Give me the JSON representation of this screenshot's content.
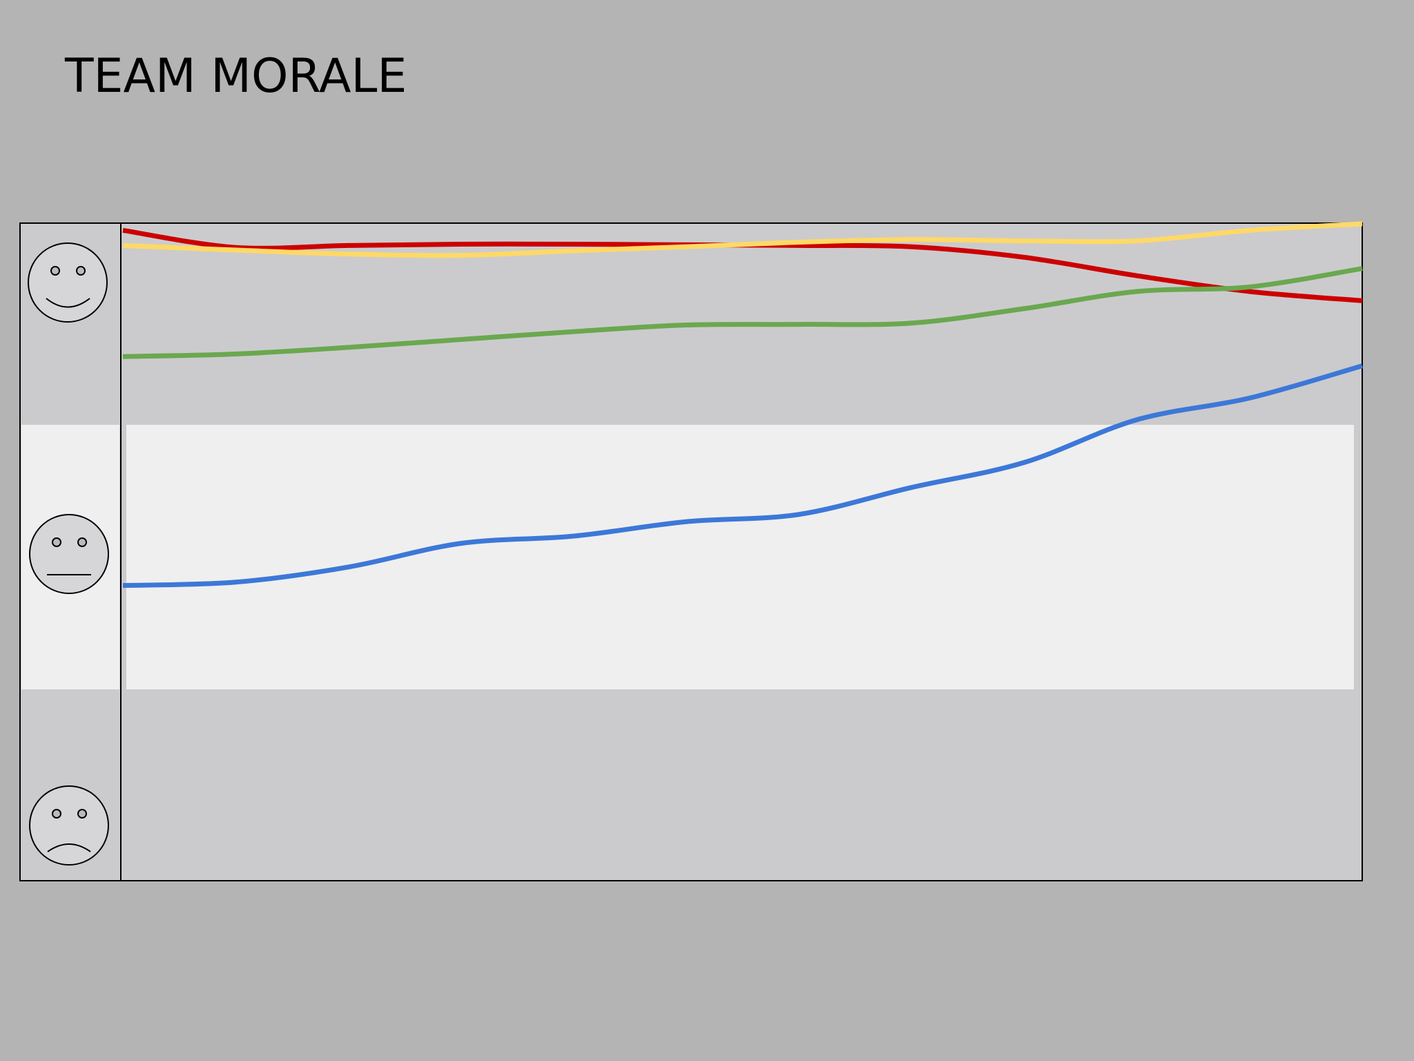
{
  "chart_data": {
    "type": "line",
    "title": "TEAM MORALE",
    "categories": [
      null,
      null,
      null,
      null,
      null,
      null,
      null,
      null,
      null,
      null,
      null,
      null
    ],
    "ylim": [
      0,
      100
    ],
    "series": [
      {
        "color": "#cc0000",
        "values": [
          98.9,
          96.3,
          96.6,
          96.8,
          96.8,
          96.7,
          96.6,
          96.4,
          94.8,
          92.0,
          89.6,
          88.2
        ]
      },
      {
        "color": "#ffd966",
        "values": [
          96.6,
          95.9,
          95.3,
          95.1,
          95.8,
          96.4,
          97.1,
          97.5,
          97.3,
          97.3,
          98.9,
          99.9
        ]
      },
      {
        "color": "#6aa84f",
        "values": [
          79.7,
          80.1,
          81.1,
          82.3,
          83.5,
          84.5,
          84.6,
          84.8,
          87.0,
          89.6,
          90.3,
          93.1
        ]
      },
      {
        "color": "#3c78d8",
        "values": [
          44.9,
          45.4,
          47.7,
          51.3,
          52.4,
          54.6,
          55.7,
          59.8,
          63.6,
          70.1,
          73.4,
          78.3
        ]
      }
    ]
  }
}
